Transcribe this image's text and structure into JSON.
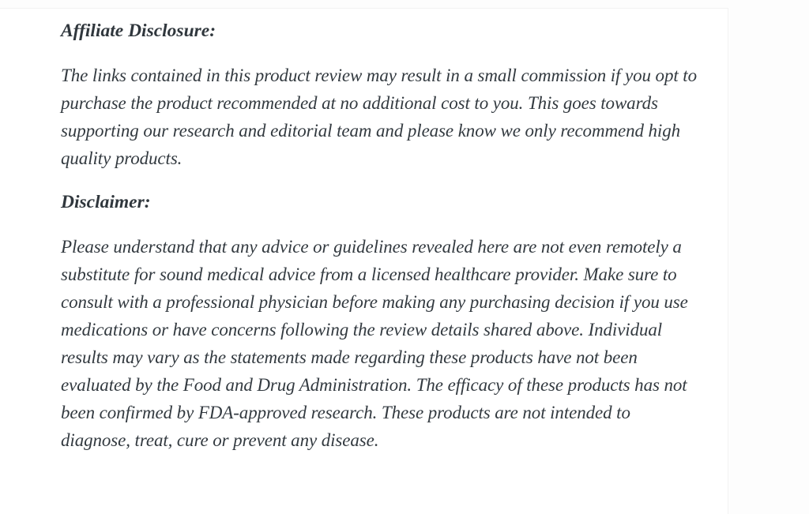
{
  "page": {
    "background_color": "#fdfdfd",
    "card_color": "#ffffff",
    "text_color": "#333a40"
  },
  "sections": [
    {
      "heading": "Affiliate Disclosure:",
      "body": "The links contained in this product review may result in a small commission if you opt to purchase the product recommended at no additional cost to you. This goes towards supporting our research and editorial team and please know we only recommend high quality products."
    },
    {
      "heading": "Disclaimer:",
      "body": "Please understand that any advice or guidelines revealed here are not even remotely a substitute for sound medical advice from a licensed healthcare provider. Make sure to consult with a professional physician before making any purchasing decision if you use medications or have concerns following the review details shared above. Individual results may vary as the statements made regarding these products have not been evaluated by the Food and Drug Administration. The efficacy of these products has not been confirmed by FDA-approved research. These products are not intended to diagnose, treat, cure or prevent any disease."
    }
  ]
}
